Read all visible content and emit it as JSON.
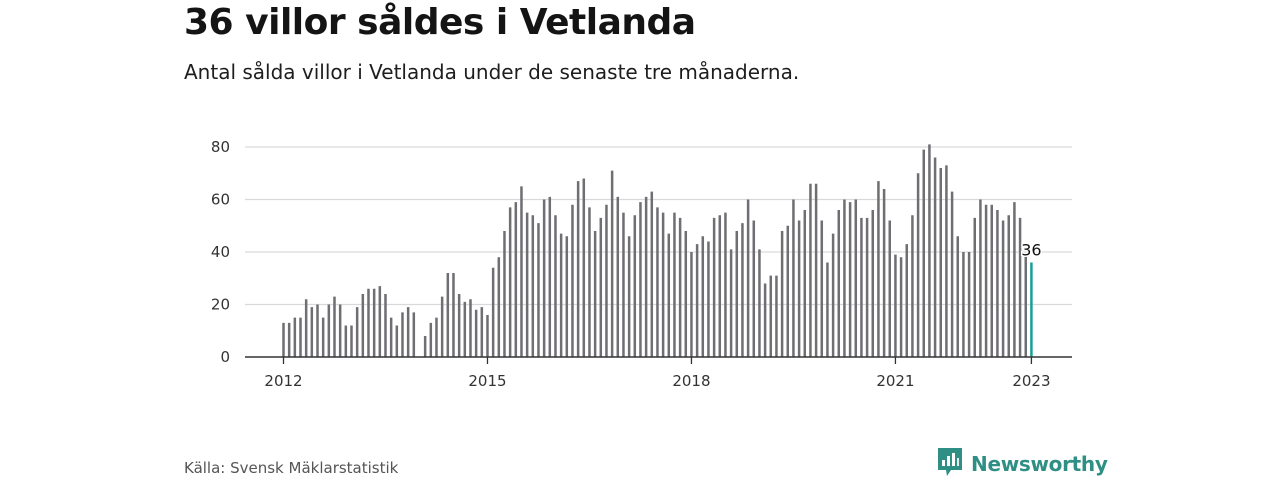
{
  "header": {
    "title": "36 villor såldes i Vetlanda",
    "subtitle": "Antal sålda villor i Vetlanda under de senaste tre månaderna."
  },
  "footer": {
    "source": "Källa: Svensk Mäklarstatistik",
    "brand": "Newsworthy",
    "brand_icon": "newsworthy-logo-icon",
    "brand_color": "#2f8f84"
  },
  "colors": {
    "bar": "#6e6e73",
    "highlight": "#1a9e97",
    "grid": "#d9d9d9",
    "axis": "#333333"
  },
  "chart_data": {
    "type": "bar",
    "start": "2012-01",
    "x_tick_labels": [
      "2012",
      "2015",
      "2018",
      "2021",
      "2023"
    ],
    "y_ticks": [
      0,
      20,
      40,
      60,
      80
    ],
    "ylim": [
      0,
      82
    ],
    "grid": true,
    "highlight_label": "36",
    "values": [
      13,
      13,
      15,
      15,
      22,
      19,
      20,
      15,
      20,
      23,
      20,
      12,
      12,
      19,
      24,
      26,
      26,
      27,
      24,
      15,
      12,
      17,
      19,
      17,
      null,
      8,
      13,
      15,
      23,
      32,
      32,
      24,
      21,
      22,
      18,
      19,
      16,
      34,
      38,
      48,
      57,
      59,
      65,
      55,
      54,
      51,
      60,
      61,
      54,
      47,
      46,
      58,
      67,
      68,
      57,
      48,
      53,
      58,
      71,
      61,
      55,
      46,
      54,
      59,
      61,
      63,
      57,
      55,
      47,
      55,
      53,
      48,
      40,
      43,
      46,
      44,
      53,
      54,
      55,
      41,
      48,
      51,
      60,
      52,
      41,
      28,
      31,
      31,
      48,
      50,
      60,
      52,
      56,
      66,
      66,
      52,
      36,
      47,
      56,
      60,
      59,
      60,
      53,
      53,
      56,
      67,
      64,
      52,
      39,
      38,
      43,
      54,
      70,
      79,
      81,
      76,
      72,
      73,
      63,
      46,
      40,
      40,
      53,
      60,
      58,
      58,
      56,
      52,
      54,
      59,
      53,
      39,
      36
    ]
  }
}
